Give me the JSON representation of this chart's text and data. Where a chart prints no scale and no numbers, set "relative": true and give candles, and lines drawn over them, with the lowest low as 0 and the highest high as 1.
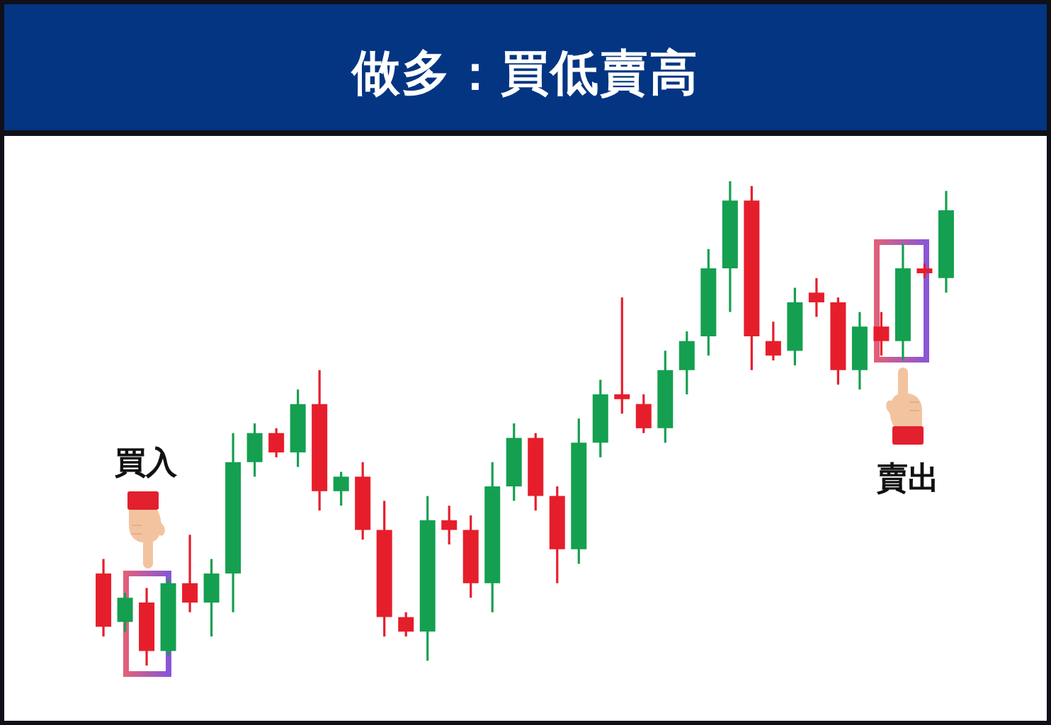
{
  "chart_data": {
    "type": "candlestick",
    "title": "做多：買低賣高",
    "annotations": [
      "買入",
      "賣出"
    ],
    "relative": true,
    "categories": [
      null,
      null,
      null,
      null,
      null,
      null,
      null,
      null,
      null,
      null,
      null,
      null,
      null,
      null,
      null,
      null,
      null,
      null,
      null,
      null,
      null,
      null,
      null,
      null,
      null,
      null,
      null,
      null,
      null,
      null,
      null,
      null,
      null,
      null,
      null,
      null,
      null,
      null,
      null,
      null
    ],
    "ohlc": [
      [
        0.19,
        0.22,
        0.06,
        0.08
      ],
      [
        0.09,
        0.15,
        0.07,
        0.14
      ],
      [
        0.13,
        0.16,
        0,
        0.03
      ],
      [
        0.03,
        0.18,
        0.02,
        0.17
      ],
      [
        0.17,
        0.27,
        0.11,
        0.13
      ],
      [
        0.13,
        0.22,
        0.06,
        0.19
      ],
      [
        0.19,
        0.48,
        0.11,
        0.42
      ],
      [
        0.42,
        0.5,
        0.39,
        0.48
      ],
      [
        0.48,
        0.49,
        0.43,
        0.44
      ],
      [
        0.44,
        0.57,
        0.41,
        0.54
      ],
      [
        0.54,
        0.61,
        0.32,
        0.36
      ],
      [
        0.36,
        0.4,
        0.33,
        0.39
      ],
      [
        0.39,
        0.42,
        0.26,
        0.28
      ],
      [
        0.28,
        0.34,
        0.06,
        0.1
      ],
      [
        0.1,
        0.11,
        0.06,
        0.07
      ],
      [
        0.07,
        0.35,
        0.01,
        0.3
      ],
      [
        0.3,
        0.33,
        0.25,
        0.28
      ],
      [
        0.28,
        0.31,
        0.14,
        0.17
      ],
      [
        0.17,
        0.42,
        0.11,
        0.37
      ],
      [
        0.37,
        0.5,
        0.34,
        0.47
      ],
      [
        0.47,
        0.48,
        0.32,
        0.35
      ],
      [
        0.35,
        0.37,
        0.17,
        0.24
      ],
      [
        0.24,
        0.51,
        0.21,
        0.46
      ],
      [
        0.46,
        0.59,
        0.43,
        0.56
      ],
      [
        0.56,
        0.76,
        0.52,
        0.55
      ],
      [
        0.54,
        0.56,
        0.48,
        0.49
      ],
      [
        0.49,
        0.65,
        0.46,
        0.61
      ],
      [
        0.61,
        0.69,
        0.56,
        0.67
      ],
      [
        0.68,
        0.86,
        0.64,
        0.82
      ],
      [
        0.82,
        1,
        0.73,
        0.96
      ],
      [
        0.96,
        0.99,
        0.61,
        0.68
      ],
      [
        0.67,
        0.71,
        0.63,
        0.64
      ],
      [
        0.65,
        0.78,
        0.62,
        0.75
      ],
      [
        0.77,
        0.8,
        0.72,
        0.75
      ],
      [
        0.75,
        0.76,
        0.58,
        0.61
      ],
      [
        0.61,
        0.73,
        0.57,
        0.7
      ],
      [
        0.7,
        0.73,
        0.64,
        0.67
      ],
      [
        0.67,
        0.87,
        0.63,
        0.82
      ],
      [
        0.82,
        0.83,
        0.8,
        0.81
      ],
      [
        0.8,
        0.98,
        0.77,
        0.94
      ]
    ],
    "colors": [
      "#e61e2b",
      "#14a050",
      "#e61e2b",
      "#14a050",
      "#e61e2b",
      "#14a050",
      "#14a050",
      "#14a050",
      "#e61e2b",
      "#14a050",
      "#e61e2b",
      "#14a050",
      "#e61e2b",
      "#e61e2b",
      "#e61e2b",
      "#14a050",
      "#e61e2b",
      "#e61e2b",
      "#14a050",
      "#14a050",
      "#e61e2b",
      "#e61e2b",
      "#14a050",
      "#14a050",
      "#e61e2b",
      "#e61e2b",
      "#14a050",
      "#14a050",
      "#14a050",
      "#14a050",
      "#e61e2b",
      "#e61e2b",
      "#14a050",
      "#e61e2b",
      "#e61e2b",
      "#14a050",
      "#e61e2b",
      "#14a050",
      "#e61e2b",
      "#14a050"
    ]
  }
}
